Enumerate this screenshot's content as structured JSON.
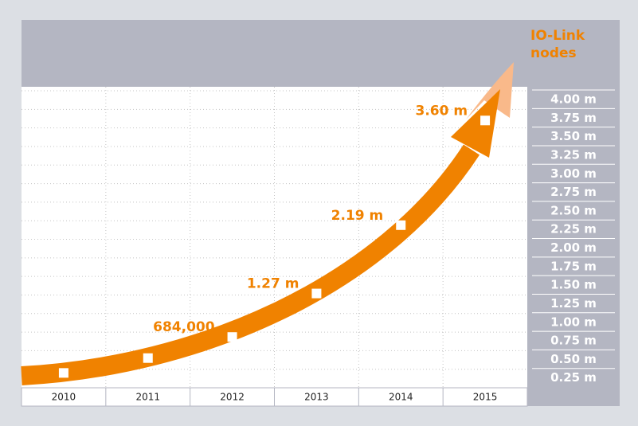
{
  "chart_data": {
    "type": "line",
    "y_axis_label": "IO-Link nodes",
    "categories": [
      "2010",
      "2011",
      "2012",
      "2013",
      "2014",
      "2015"
    ],
    "values": [
      0.2,
      0.4,
      0.684,
      1.27,
      2.19,
      3.6
    ],
    "value_labels": [
      null,
      null,
      "684,000",
      "1.27 m",
      "2.19 m",
      "3.60 m"
    ],
    "color": "#f08200",
    "ylim": [
      0,
      4
    ],
    "yticks": [
      {
        "value": 0.25,
        "label": "0.25 m"
      },
      {
        "value": 0.5,
        "label": "0.50 m"
      },
      {
        "value": 0.75,
        "label": "0.75 m"
      },
      {
        "value": 1,
        "label": "1.00 m"
      },
      {
        "value": 1.25,
        "label": "1.25 m"
      },
      {
        "value": 1.5,
        "label": "1.50 m"
      },
      {
        "value": 1.75,
        "label": "1.75 m"
      },
      {
        "value": 2,
        "label": "2.00 m"
      },
      {
        "value": 2.25,
        "label": "2.25 m"
      },
      {
        "value": 2.5,
        "label": "2.50 m"
      },
      {
        "value": 2.75,
        "label": "2.75 m"
      },
      {
        "value": 3,
        "label": "3.00 m"
      },
      {
        "value": 3.25,
        "label": "3.25 m"
      },
      {
        "value": 3.5,
        "label": "3.50 m"
      },
      {
        "value": 3.75,
        "label": "3.75 m"
      },
      {
        "value": 4,
        "label": "4.00 m"
      }
    ],
    "grid": true
  }
}
